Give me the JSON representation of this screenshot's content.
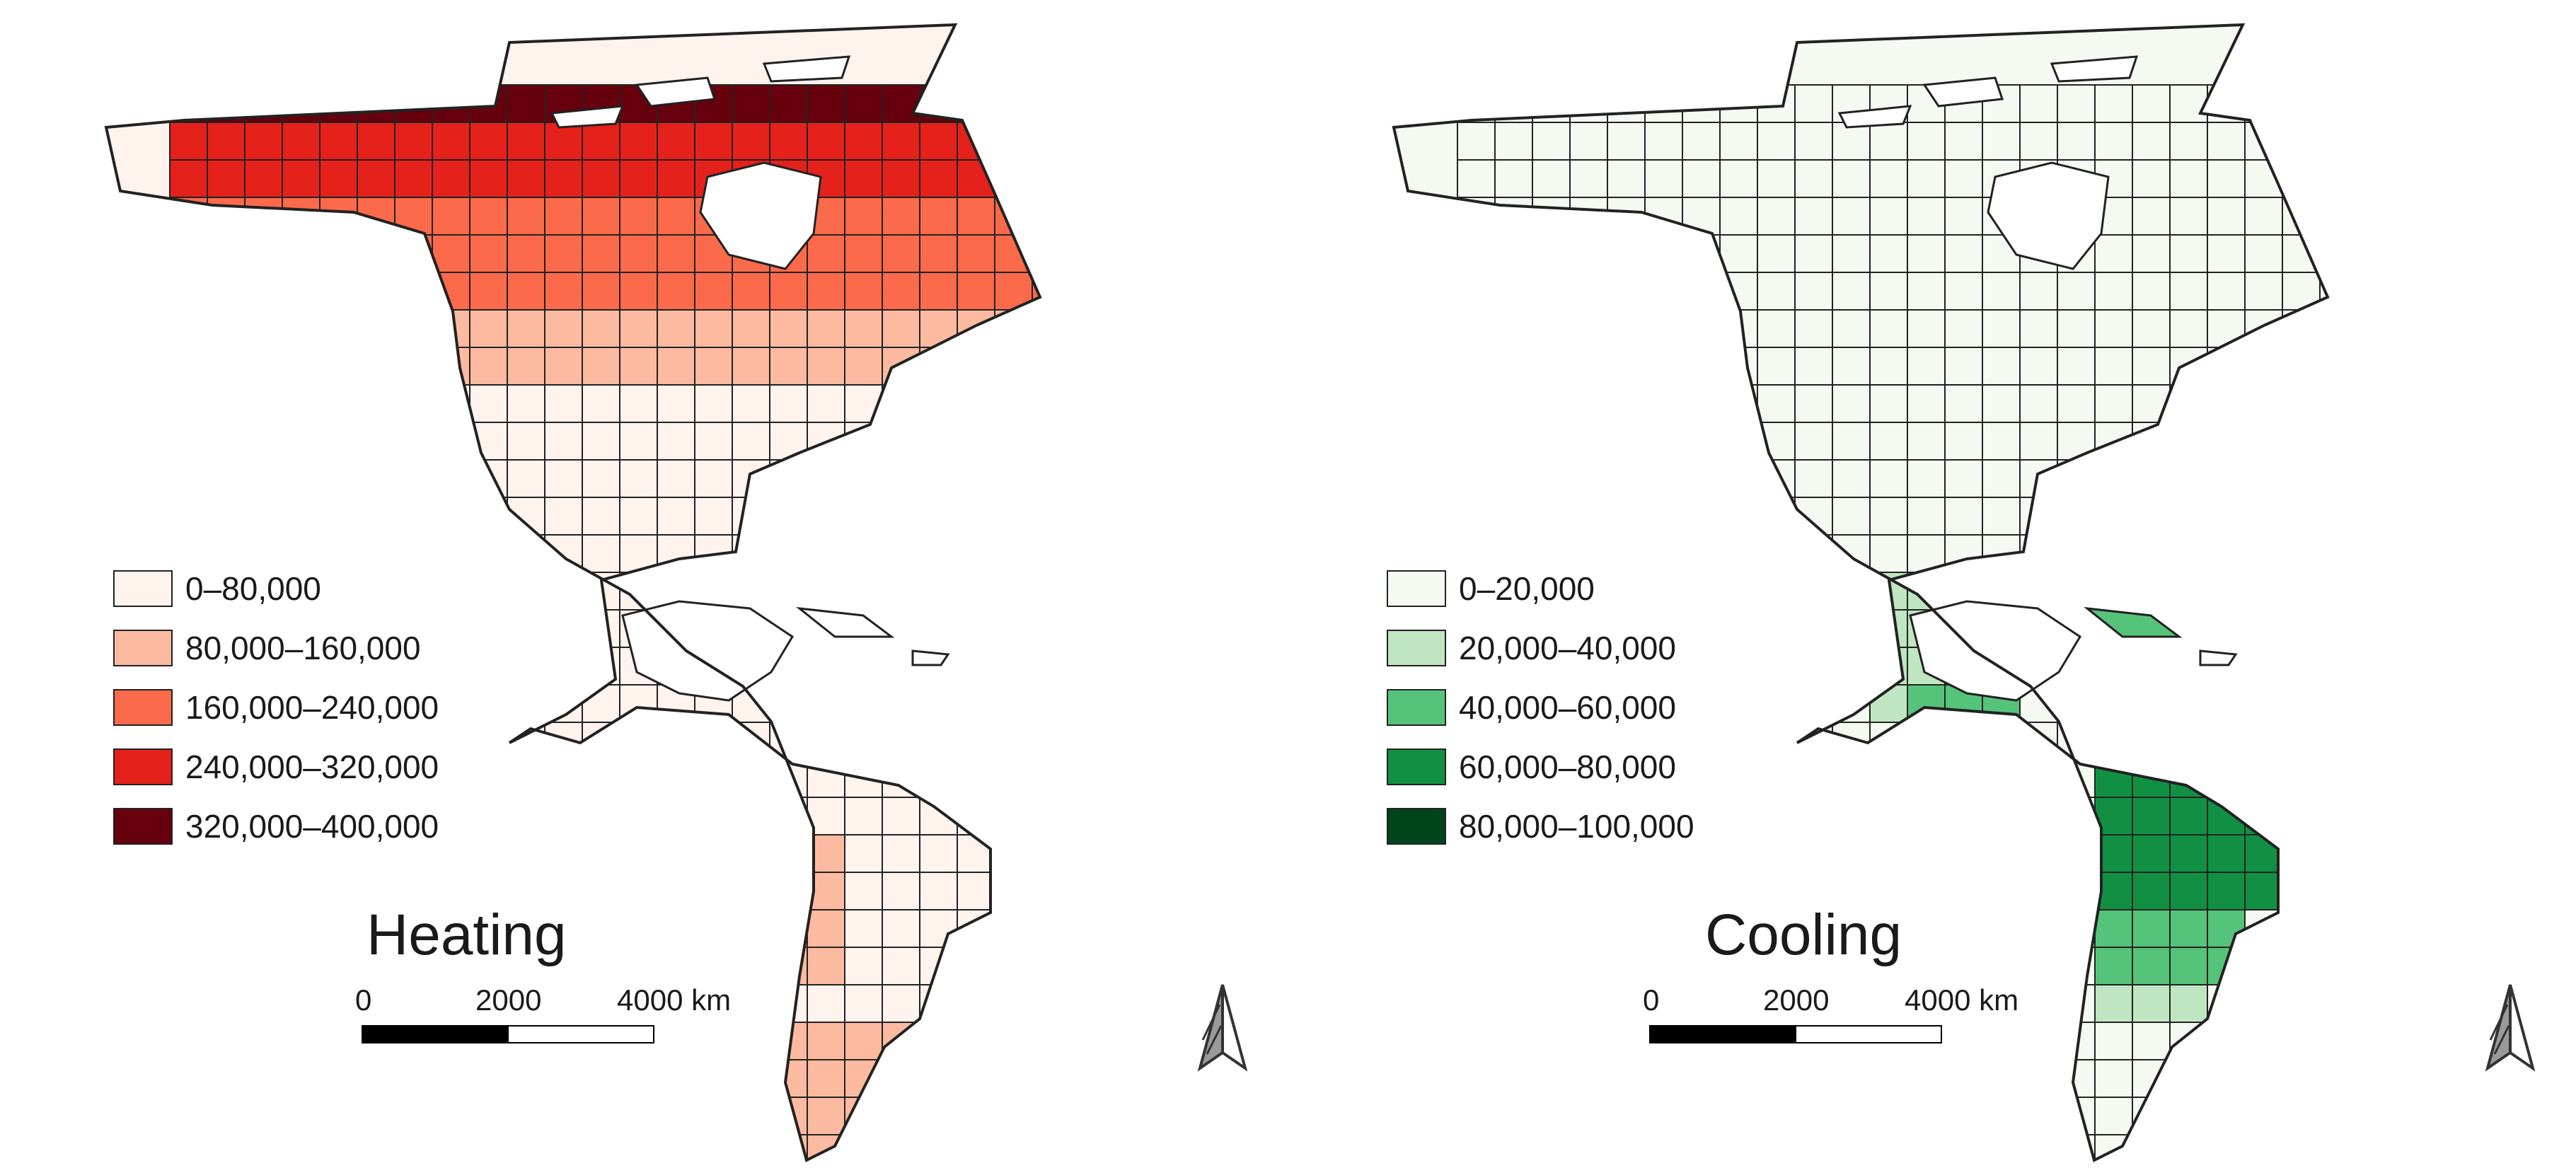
{
  "maps": [
    {
      "title": "Heating",
      "legend": [
        {
          "label": "0–80,000",
          "color": "#fff3ee"
        },
        {
          "label": "80,000–160,000",
          "color": "#fcbba1"
        },
        {
          "label": "160,000–240,000",
          "color": "#fb6a4a"
        },
        {
          "label": "240,000–320,000",
          "color": "#e5211b"
        },
        {
          "label": "320,000–400,000",
          "color": "#67000d"
        }
      ]
    },
    {
      "title": "Cooling",
      "legend": [
        {
          "label": "0–20,000",
          "color": "#f4faf2"
        },
        {
          "label": "20,000–40,000",
          "color": "#bfe6c0"
        },
        {
          "label": "40,000–60,000",
          "color": "#56c37a"
        },
        {
          "label": "60,000–80,000",
          "color": "#119044"
        },
        {
          "label": "80,000–100,000",
          "color": "#00441b"
        }
      ]
    }
  ],
  "scalebar": {
    "tick_0": "0",
    "tick_1": "2000",
    "tick_2": "4000 km"
  },
  "north_arrow_icon": "north-arrow-icon"
}
